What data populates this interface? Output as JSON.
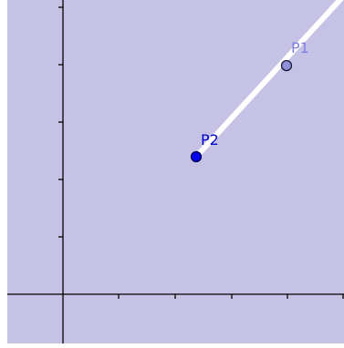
{
  "colors": {
    "background": "#c6c2e6",
    "axis": "#000000",
    "ray": "#ffffff",
    "p1_fill": "#8f8fd8",
    "p1_label": "#7f7fe0",
    "p2_fill": "#0000ee",
    "p2_label": "#0000cc"
  },
  "points": {
    "p1": {
      "label": "P1"
    },
    "p2": {
      "label": "P2"
    }
  }
}
